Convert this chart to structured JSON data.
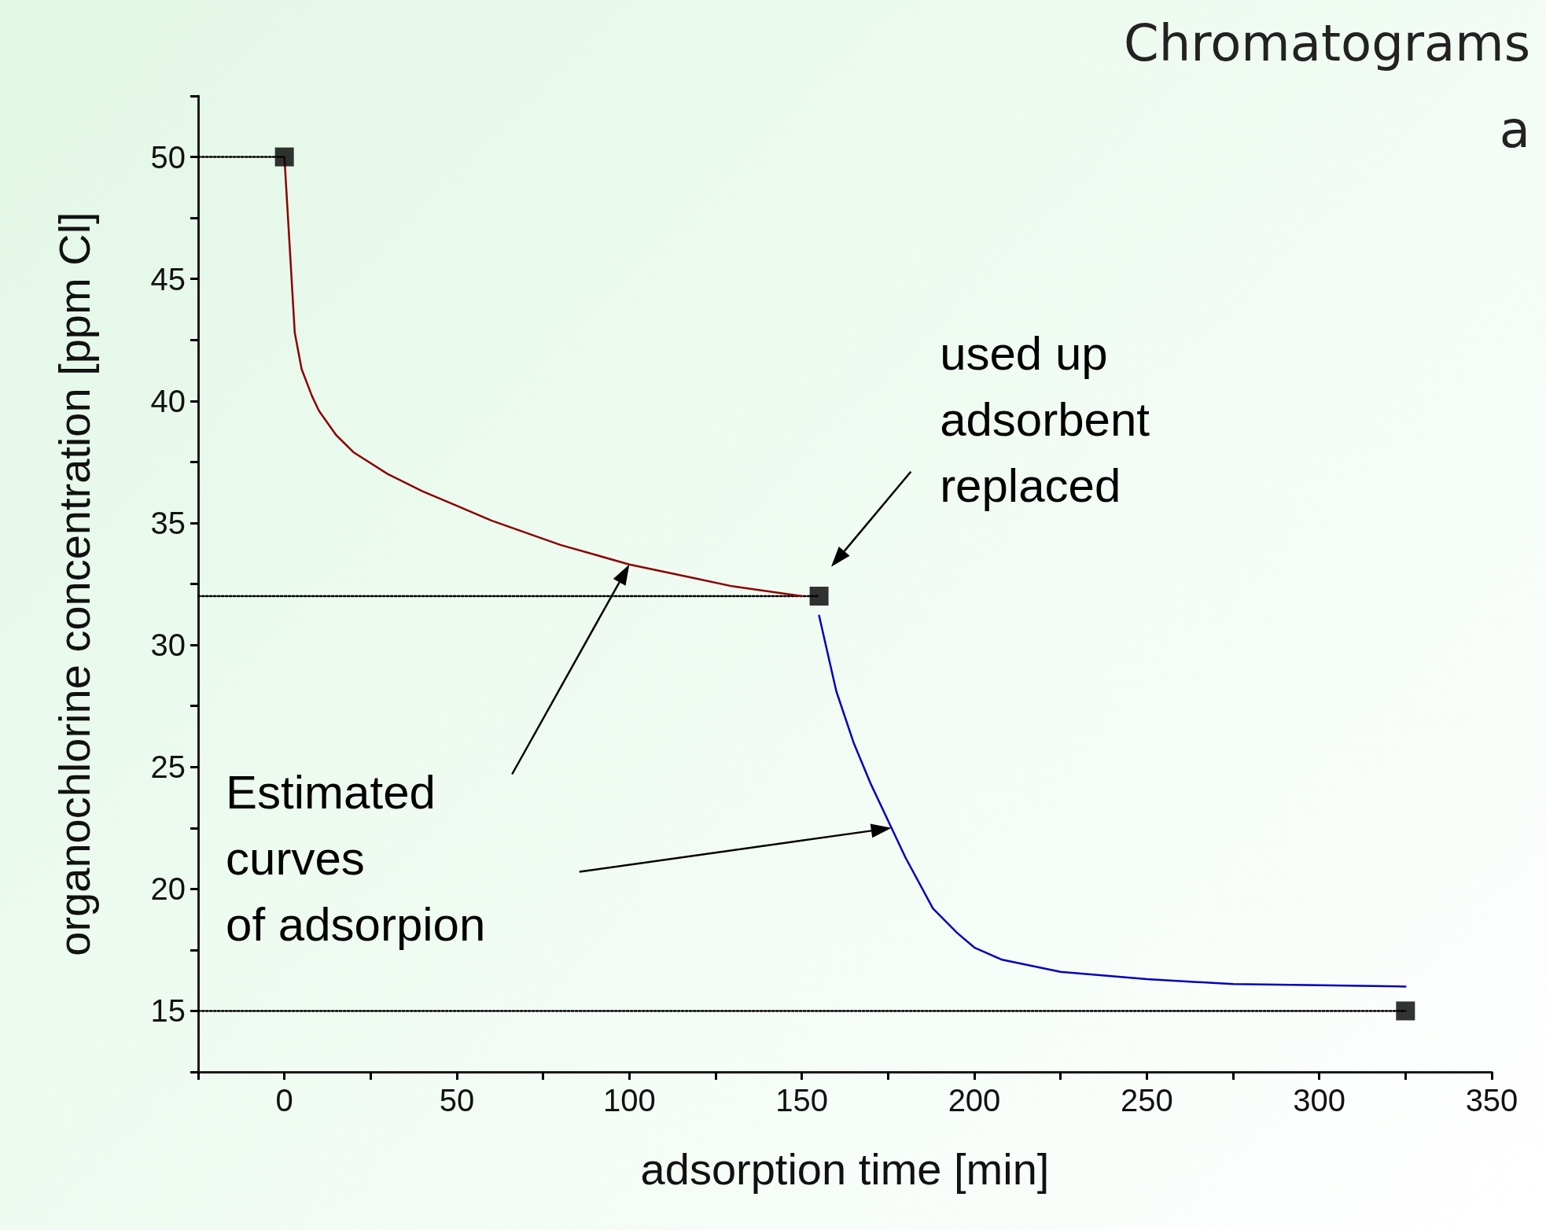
{
  "chart_data": {
    "type": "line",
    "xlabel": "adsorption time [min]",
    "ylabel": "organochlorine concentration [ppm Cl]",
    "xlim": [
      -25,
      350
    ],
    "ylim": [
      12.5,
      52.5
    ],
    "xticks": [
      {
        "value": -25,
        "label": null
      },
      0,
      {
        "value": 25,
        "label": null
      },
      50,
      {
        "value": 75,
        "label": null
      },
      100,
      {
        "value": 125,
        "label": null
      },
      150,
      {
        "value": 175,
        "label": null
      },
      200,
      {
        "value": 225,
        "label": null
      },
      250,
      {
        "value": 275,
        "label": null
      },
      300,
      {
        "value": 325,
        "label": null
      },
      350
    ],
    "yticks": [
      {
        "value": 12.5,
        "label": null
      },
      15,
      {
        "value": 17.5,
        "label": null
      },
      20,
      {
        "value": 22.5,
        "label": null
      },
      25,
      {
        "value": 27.5,
        "label": null
      },
      30,
      {
        "value": 32.5,
        "label": null
      },
      35,
      {
        "value": 37.5,
        "label": null
      },
      40,
      {
        "value": 42.5,
        "label": null
      },
      45,
      {
        "value": 47.5,
        "label": null
      },
      50,
      {
        "value": 52.5,
        "label": null
      }
    ],
    "grid": false,
    "marker": "none",
    "series": [
      {
        "color": "#8b0000",
        "line_style": "solid",
        "x": [
          0,
          3,
          5,
          8,
          10,
          15,
          20,
          30,
          40,
          50,
          60,
          70,
          80,
          90,
          100,
          110,
          120,
          130,
          140,
          150
        ],
        "values": [
          50,
          42.8,
          41.3,
          40.2,
          39.6,
          38.6,
          37.9,
          37,
          36.3,
          35.7,
          35.1,
          34.6,
          34.1,
          33.7,
          33.3,
          33,
          32.7,
          32.4,
          32.2,
          32
        ]
      },
      {
        "color": "#0000c0",
        "line_style": "solid",
        "x": [
          155,
          160,
          165,
          170,
          176,
          180,
          188,
          195,
          200,
          208,
          225,
          250,
          275,
          300,
          325
        ],
        "values": [
          31.2,
          28.1,
          26,
          24.3,
          22.5,
          21.3,
          19.2,
          18.2,
          17.6,
          17.1,
          16.6,
          16.3,
          16.1,
          16.05,
          16
        ]
      },
      {
        "color": "#000000",
        "line_style": "dotted",
        "x": [
          -25,
          0
        ],
        "values": [
          50,
          50
        ]
      },
      {
        "color": "#000000",
        "line_style": "dotted",
        "x": [
          -25,
          155
        ],
        "values": [
          32,
          32
        ]
      },
      {
        "color": "#000000",
        "line_style": "dotted",
        "x": [
          -25,
          325
        ],
        "values": [
          15,
          15
        ]
      },
      {
        "type": "scatter",
        "color": "#000000",
        "marker": "square",
        "x": [
          0,
          155,
          325
        ],
        "values": [
          50,
          32,
          15
        ]
      }
    ],
    "annotations": [
      "Chromatograms",
      "a",
      "used up\nadsorbent\nreplaced",
      "Estimated\ncurves\nof adsorpion"
    ]
  }
}
